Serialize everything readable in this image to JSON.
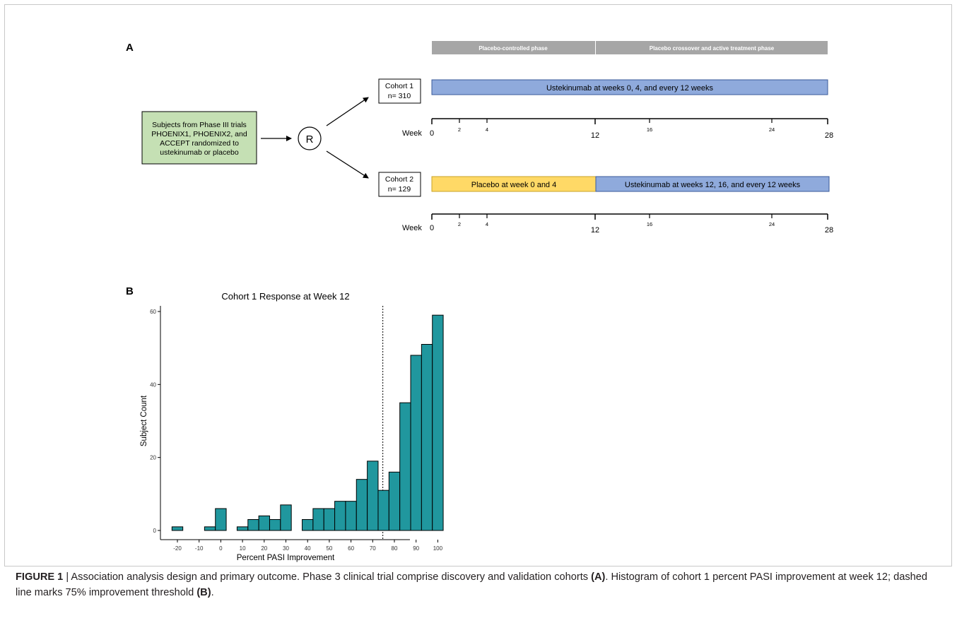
{
  "panel_a": {
    "label": "A",
    "phase_bar": {
      "left": "Placebo-controlled phase",
      "right": "Placebo crossover and active treatment phase"
    },
    "subjects_box": [
      "Subjects from Phase III trials",
      "PHOENIX1,  PHOENIX2, and",
      "ACCEPT randomized to",
      "ustekinumab or placebo"
    ],
    "randomize_label": "R",
    "cohort1": {
      "name": "Cohort 1",
      "n": "n= 310",
      "bar": "Ustekinumab at weeks 0, 4, and every 12 weeks"
    },
    "cohort2": {
      "name": "Cohort 2",
      "n": "n= 129",
      "bar_placebo": "Placebo at week 0 and 4",
      "bar_active": "Ustekinumab at weeks 12, 16, and every 12 weeks"
    },
    "week_label": "Week",
    "ticks_major": [
      "0",
      "12",
      "28"
    ],
    "ticks_minor": [
      "2",
      "4",
      "16",
      "24"
    ],
    "colors": {
      "phase": "#a6a6a6",
      "ustekinumab": "#8faadc",
      "placebo": "#ffd966",
      "subjects": "#c5e0b4"
    }
  },
  "panel_b": {
    "label": "B",
    "chart_data": {
      "type": "bar",
      "title": "Cohort 1 Response at Week 12",
      "xlabel": "Percent PASI Improvement",
      "ylabel": "Subject Count",
      "x": [
        -20,
        -15,
        -10,
        -5,
        0,
        5,
        10,
        15,
        20,
        25,
        30,
        35,
        40,
        45,
        50,
        55,
        60,
        65,
        70,
        75,
        80,
        85,
        90,
        95,
        100
      ],
      "values": [
        1,
        0,
        0,
        1,
        6,
        0,
        1,
        3,
        4,
        3,
        7,
        0,
        3,
        6,
        6,
        8,
        8,
        14,
        19,
        11,
        16,
        35,
        48,
        51,
        59
      ],
      "xticks": [
        "-20",
        "-10",
        "0",
        "10",
        "20",
        "30",
        "40",
        "50",
        "60",
        "70",
        "80",
        "90",
        "100"
      ],
      "yticks": [
        "0",
        "20",
        "40",
        "60"
      ],
      "ylim": [
        0,
        60
      ],
      "threshold": 75,
      "bar_color": "#20979e"
    }
  },
  "caption": {
    "figure_label": "FIGURE 1",
    "sep": " | ",
    "text1": "Association analysis design and primary outcome. Phase 3 clinical trial comprise discovery and validation cohorts ",
    "ref_a": "(A)",
    "text2": ". Histogram of cohort 1 percent PASI improvement at week 12; dashed line marks 75% improvement threshold ",
    "ref_b": "(B)",
    "text3": "."
  }
}
